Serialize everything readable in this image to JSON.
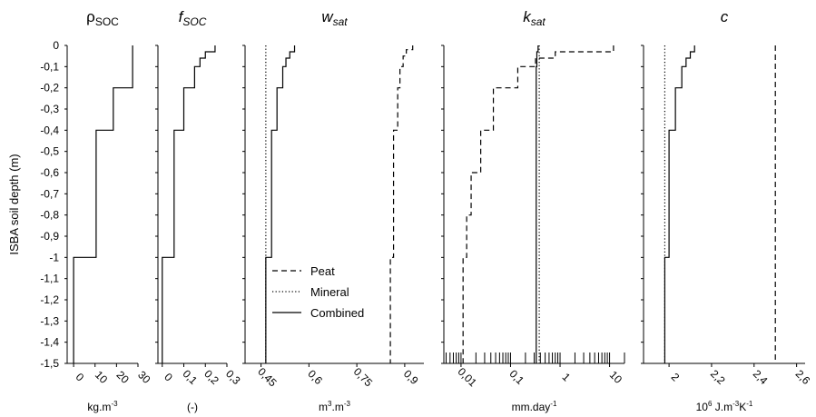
{
  "chart_data": [
    {
      "type": "line",
      "title": "ρ",
      "title_sub": "SOC",
      "xlabel": "kg.m",
      "xlabel_sup": "-3",
      "ylabel": "ISBA soil depth (m)",
      "yticks": [
        "0",
        "-0,1",
        "-0,2",
        "-0,3",
        "-0,4",
        "-0,5",
        "-0,6",
        "-0,7",
        "-0,8",
        "-0,9",
        "-1",
        "-1,1",
        "-1,2",
        "-1,3",
        "-1,4",
        "-1,5"
      ],
      "xscale": "linear",
      "xlim": [
        -3,
        30
      ],
      "xticks": [
        {
          "v": 0,
          "label": "0"
        },
        {
          "v": 10,
          "label": "10"
        },
        {
          "v": 20,
          "label": "20"
        },
        {
          "v": 30,
          "label": "30"
        }
      ],
      "series": [
        {
          "style": "solid",
          "profile": [
            {
              "d0": 0,
              "d1": 0.2,
              "x": 27.5
            },
            {
              "d0": 0.2,
              "d1": 0.4,
              "x": 18.5
            },
            {
              "d0": 0.4,
              "d1": 1.0,
              "x": 10.5
            },
            {
              "d0": 1.0,
              "d1": 1.5,
              "x": 0
            }
          ]
        }
      ]
    },
    {
      "type": "line",
      "title": "f",
      "title_sub": "SOC",
      "xlabel": "(-)",
      "xscale": "linear",
      "xlim": [
        -0.02,
        0.3
      ],
      "xticks": [
        {
          "v": 0,
          "label": "0"
        },
        {
          "v": 0.1,
          "label": "0,1"
        },
        {
          "v": 0.2,
          "label": "0,2"
        },
        {
          "v": 0.3,
          "label": "0,3"
        }
      ],
      "series": [
        {
          "style": "solid",
          "profile": [
            {
              "d0": 0,
              "d1": 0.03,
              "x": 0.245
            },
            {
              "d0": 0.03,
              "d1": 0.06,
              "x": 0.2
            },
            {
              "d0": 0.06,
              "d1": 0.1,
              "x": 0.175
            },
            {
              "d0": 0.1,
              "d1": 0.2,
              "x": 0.15
            },
            {
              "d0": 0.2,
              "d1": 0.4,
              "x": 0.1
            },
            {
              "d0": 0.4,
              "d1": 1.0,
              "x": 0.055
            },
            {
              "d0": 1.0,
              "d1": 1.5,
              "x": 0
            }
          ]
        }
      ]
    },
    {
      "type": "line",
      "title": "w",
      "title_sub": "sat",
      "xlabel": "m",
      "xlabel_sup": "3",
      "xlabel_mid": ".m",
      "xlabel_sup2": "-3",
      "xscale": "linear",
      "xlim": [
        0.4,
        0.96
      ],
      "xticks": [
        {
          "v": 0.45,
          "label": "0,45"
        },
        {
          "v": 0.6,
          "label": "0,6"
        },
        {
          "v": 0.75,
          "label": "0,75"
        },
        {
          "v": 0.9,
          "label": "0,9"
        }
      ],
      "legend": {
        "position": "bottom-left",
        "entries": [
          {
            "label": "Peat",
            "style": "dashed"
          },
          {
            "label": "Mineral",
            "style": "dotted"
          },
          {
            "label": "Combined",
            "style": "solid"
          }
        ]
      },
      "series": [
        {
          "name": "Peat",
          "style": "dashed",
          "profile": [
            {
              "d0": 0,
              "d1": 0.02,
              "x": 0.925
            },
            {
              "d0": 0.02,
              "d1": 0.05,
              "x": 0.905
            },
            {
              "d0": 0.05,
              "d1": 0.1,
              "x": 0.895
            },
            {
              "d0": 0.1,
              "d1": 0.2,
              "x": 0.885
            },
            {
              "d0": 0.2,
              "d1": 0.4,
              "x": 0.878
            },
            {
              "d0": 0.4,
              "d1": 1.0,
              "x": 0.865
            },
            {
              "d0": 1.0,
              "d1": 1.5,
              "x": 0.855
            }
          ]
        },
        {
          "name": "Mineral",
          "style": "dotted",
          "profile": [
            {
              "d0": 0,
              "d1": 1.5,
              "x": 0.465
            }
          ]
        },
        {
          "name": "Combined",
          "style": "solid",
          "profile": [
            {
              "d0": 0,
              "d1": 0.03,
              "x": 0.555
            },
            {
              "d0": 0.03,
              "d1": 0.06,
              "x": 0.54
            },
            {
              "d0": 0.06,
              "d1": 0.1,
              "x": 0.528
            },
            {
              "d0": 0.1,
              "d1": 0.2,
              "x": 0.518
            },
            {
              "d0": 0.2,
              "d1": 0.4,
              "x": 0.5
            },
            {
              "d0": 0.4,
              "d1": 1.0,
              "x": 0.483
            },
            {
              "d0": 1.0,
              "d1": 1.5,
              "x": 0.465
            }
          ]
        }
      ]
    },
    {
      "type": "line",
      "title": "k",
      "title_sub": "sat",
      "xlabel": "mm.day",
      "xlabel_sup": "-1",
      "xscale": "log",
      "xlim": [
        0.0045,
        20
      ],
      "xticks": [
        {
          "v": 0.01,
          "label": "0,01"
        },
        {
          "v": 0.1,
          "label": "0,1"
        },
        {
          "v": 1,
          "label": "1"
        },
        {
          "v": 10,
          "label": "10"
        }
      ],
      "series": [
        {
          "name": "Peat",
          "style": "dashed",
          "profile": [
            {
              "d0": 0,
              "d1": 0.03,
              "x": 12
            },
            {
              "d0": 0.03,
              "d1": 0.06,
              "x": 0.8
            },
            {
              "d0": 0.06,
              "d1": 0.1,
              "x": 0.32
            },
            {
              "d0": 0.1,
              "d1": 0.2,
              "x": 0.14
            },
            {
              "d0": 0.2,
              "d1": 0.4,
              "x": 0.045
            },
            {
              "d0": 0.4,
              "d1": 0.6,
              "x": 0.025
            },
            {
              "d0": 0.6,
              "d1": 0.8,
              "x": 0.016
            },
            {
              "d0": 0.8,
              "d1": 1.0,
              "x": 0.013
            },
            {
              "d0": 1.0,
              "d1": 1.5,
              "x": 0.011
            }
          ]
        },
        {
          "name": "Mineral",
          "style": "dotted",
          "profile": [
            {
              "d0": 0,
              "d1": 1.5,
              "x": 0.38
            }
          ]
        },
        {
          "name": "Combined",
          "style": "solid",
          "profile": [
            {
              "d0": 0,
              "d1": 0.03,
              "x": 0.36
            },
            {
              "d0": 0.03,
              "d1": 0.1,
              "x": 0.34
            },
            {
              "d0": 0.1,
              "d1": 1.0,
              "x": 0.33
            },
            {
              "d0": 1.0,
              "d1": 1.5,
              "x": 0.33
            }
          ]
        }
      ]
    },
    {
      "type": "line",
      "title": "c",
      "xlabel": "10",
      "xlabel_sup": "6",
      "xlabel_mid": " J.m",
      "xlabel_sup2": "-3",
      "xlabel_tail": "K",
      "xlabel_sup3": "-1",
      "xscale": "linear",
      "xlim": [
        1.88,
        2.64
      ],
      "xticks": [
        {
          "v": 2.0,
          "label": "2"
        },
        {
          "v": 2.2,
          "label": "2,2"
        },
        {
          "v": 2.4,
          "label": "2,4"
        },
        {
          "v": 2.6,
          "label": "2,6"
        }
      ],
      "series": [
        {
          "name": "Peat",
          "style": "dashed",
          "profile": [
            {
              "d0": 0,
              "d1": 1.5,
              "x": 2.5
            }
          ]
        },
        {
          "name": "Mineral",
          "style": "dotted",
          "profile": [
            {
              "d0": 0,
              "d1": 1.5,
              "x": 1.98
            }
          ]
        },
        {
          "name": "Combined",
          "style": "solid",
          "profile": [
            {
              "d0": 0,
              "d1": 0.03,
              "x": 2.12
            },
            {
              "d0": 0.03,
              "d1": 0.06,
              "x": 2.1
            },
            {
              "d0": 0.06,
              "d1": 0.1,
              "x": 2.08
            },
            {
              "d0": 0.1,
              "d1": 0.2,
              "x": 2.06
            },
            {
              "d0": 0.2,
              "d1": 0.4,
              "x": 2.03
            },
            {
              "d0": 0.4,
              "d1": 1.0,
              "x": 2.0
            },
            {
              "d0": 1.0,
              "d1": 1.5,
              "x": 1.98
            }
          ]
        }
      ]
    }
  ]
}
